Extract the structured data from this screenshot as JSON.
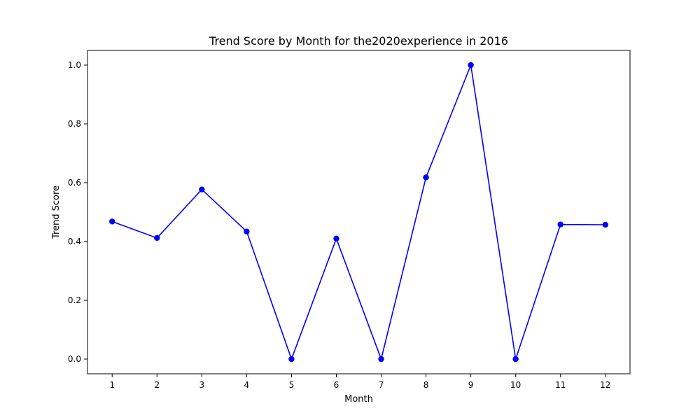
{
  "chart_data": {
    "type": "line",
    "title": "Trend Score by Month for the2020experience in 2016",
    "xlabel": "Month",
    "ylabel": "Trend Score",
    "x": [
      1,
      2,
      3,
      4,
      5,
      6,
      7,
      8,
      9,
      10,
      11,
      12
    ],
    "x_tick_labels": [
      "1",
      "2",
      "3",
      "4",
      "5",
      "6",
      "7",
      "8",
      "9",
      "10",
      "11",
      "12"
    ],
    "y_ticks": [
      0.0,
      0.2,
      0.4,
      0.6,
      0.8,
      1.0
    ],
    "y_tick_labels": [
      "0.0",
      "0.2",
      "0.4",
      "0.6",
      "0.8",
      "1.0"
    ],
    "xlim": [
      0.45,
      12.55
    ],
    "ylim": [
      -0.05,
      1.05
    ],
    "grid": false,
    "series": [
      {
        "color": "#0000ff",
        "marker": "circle",
        "values": [
          0.468,
          0.412,
          0.577,
          0.434,
          0.0,
          0.41,
          0.0,
          0.618,
          1.0,
          0.0,
          0.458,
          0.457
        ]
      }
    ]
  }
}
